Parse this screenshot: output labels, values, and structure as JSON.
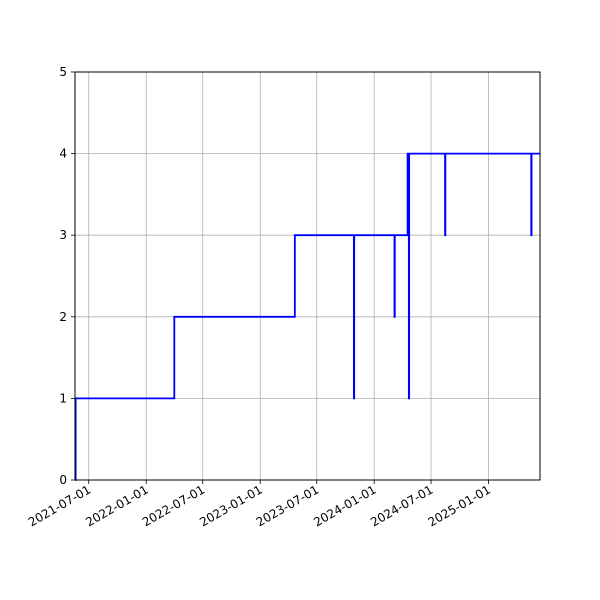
{
  "chart_data": {
    "type": "line",
    "title": "",
    "xlabel": "",
    "ylabel": "",
    "x_axis_type": "date",
    "xlim": [
      "2021-05-18",
      "2025-06-15"
    ],
    "ylim": [
      0,
      5
    ],
    "grid": true,
    "line_style": "step",
    "x_ticks": [
      "2021-07-01",
      "2022-01-01",
      "2022-07-01",
      "2023-01-01",
      "2023-07-01",
      "2024-01-01",
      "2024-07-01",
      "2025-01-01"
    ],
    "y_ticks": [
      0,
      1,
      2,
      3,
      4,
      5
    ],
    "series": [
      {
        "color": "#0000ff",
        "points": [
          {
            "x": "2021-05-18",
            "y": 0
          },
          {
            "x": "2021-05-20",
            "y": 1
          },
          {
            "x": "2022-04-01",
            "y": 2
          },
          {
            "x": "2023-01-01",
            "y": 2
          },
          {
            "x": "2023-04-22",
            "y": 3
          },
          {
            "x": "2023-10-27",
            "y": 3
          },
          {
            "x": "2023-10-28",
            "y": 1
          },
          {
            "x": "2023-10-29",
            "y": 3
          },
          {
            "x": "2024-03-05",
            "y": 3
          },
          {
            "x": "2024-03-06",
            "y": 2
          },
          {
            "x": "2024-03-07",
            "y": 3
          },
          {
            "x": "2024-04-15",
            "y": 3
          },
          {
            "x": "2024-04-17",
            "y": 4
          },
          {
            "x": "2024-04-20",
            "y": 4
          },
          {
            "x": "2024-04-21",
            "y": 1
          },
          {
            "x": "2024-04-22",
            "y": 4
          },
          {
            "x": "2024-08-14",
            "y": 4
          },
          {
            "x": "2024-08-15",
            "y": 3
          },
          {
            "x": "2024-08-16",
            "y": 4
          },
          {
            "x": "2025-05-17",
            "y": 4
          },
          {
            "x": "2025-05-18",
            "y": 3
          },
          {
            "x": "2025-05-19",
            "y": 4
          },
          {
            "x": "2025-06-15",
            "y": 4
          }
        ]
      }
    ]
  }
}
